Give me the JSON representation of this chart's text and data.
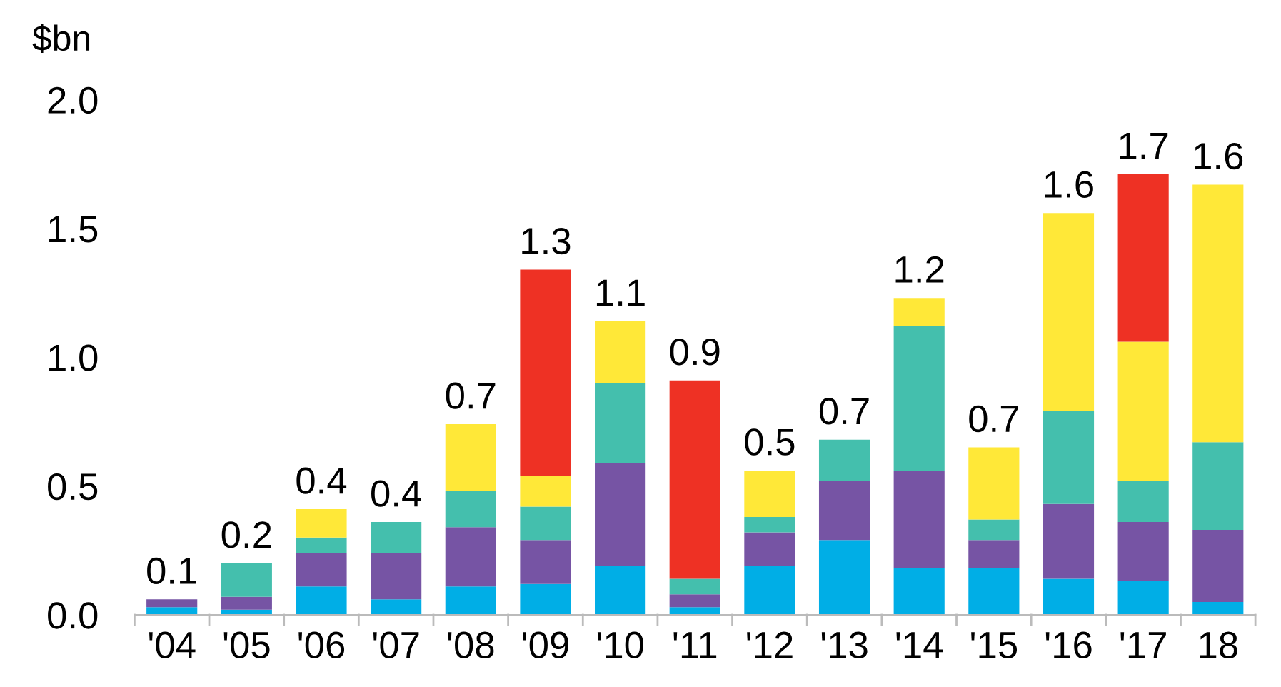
{
  "chart_data": {
    "type": "bar",
    "stacked": true,
    "ylabel": "$bn",
    "categories": [
      "'04",
      "'05",
      "'06",
      "'07",
      "'08",
      "'09",
      "'10",
      "'11",
      "'12",
      "'13",
      "'14",
      "'15",
      "'16",
      "'17",
      "18"
    ],
    "series": [
      {
        "color": "#00aee6",
        "values": [
          0.03,
          0.02,
          0.11,
          0.06,
          0.11,
          0.12,
          0.19,
          0.03,
          0.19,
          0.29,
          0.18,
          0.18,
          0.14,
          0.13,
          0.05
        ]
      },
      {
        "color": "#7654a4",
        "values": [
          0.03,
          0.05,
          0.13,
          0.18,
          0.23,
          0.17,
          0.4,
          0.05,
          0.13,
          0.23,
          0.38,
          0.11,
          0.29,
          0.23,
          0.28
        ]
      },
      {
        "color": "#44bfad",
        "values": [
          0,
          0.13,
          0.06,
          0.12,
          0.14,
          0.13,
          0.31,
          0.06,
          0.06,
          0.16,
          0.56,
          0.08,
          0.36,
          0.16,
          0.34
        ]
      },
      {
        "color": "#ffe838",
        "values": [
          0,
          0,
          0.11,
          0,
          0.26,
          0.12,
          0.24,
          0,
          0.18,
          0,
          0.11,
          0.28,
          0.77,
          0.54,
          1.0
        ]
      },
      {
        "color": "#ee3124",
        "values": [
          0,
          0,
          0,
          0,
          0,
          0.8,
          0,
          0.77,
          0,
          0,
          0,
          0,
          0,
          0.65,
          0
        ]
      }
    ],
    "totals": [
      "0.1",
      "0.2",
      "0.4",
      "0.4",
      "0.7",
      "1.3",
      "1.1",
      "0.9",
      "0.5",
      "0.7",
      "1.2",
      "0.7",
      "1.6",
      "1.7",
      "1.6"
    ],
    "ylim": [
      0,
      2.0
    ],
    "yticks": [
      {
        "value": 0,
        "label": "0.0"
      },
      0.5,
      {
        "value": 1,
        "label": "1.0"
      },
      1.5,
      {
        "value": 2,
        "label": "2.0"
      }
    ],
    "grid": false
  }
}
